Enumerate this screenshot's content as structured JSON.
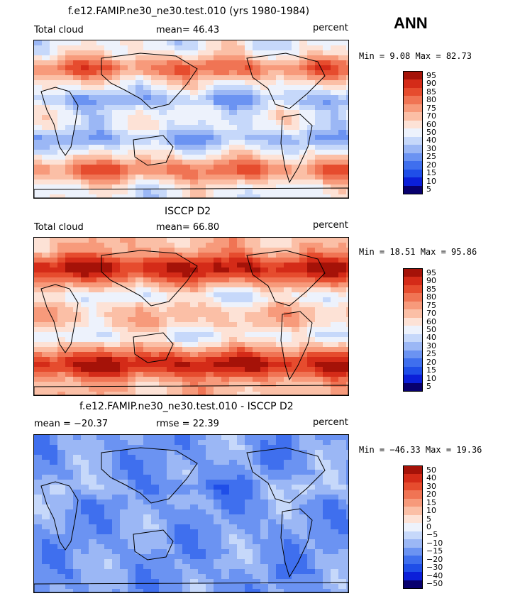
{
  "season": "ANN",
  "palette_warm_cool": [
    "#08006e",
    "#0b1fd9",
    "#1f4ee8",
    "#3f6fee",
    "#6b93f2",
    "#9bb7f5",
    "#c6d8fa",
    "#edf2fc",
    "#fde2d6",
    "#fbbfa6",
    "#f79a7b",
    "#f07454",
    "#e64c2e",
    "#d42b18",
    "#a51208"
  ],
  "panels": [
    {
      "title": "f.e12.FAMIP.ne30_ne30.test.010 (yrs 1980-1984)",
      "left_label": "Total cloud",
      "center_label": "mean=  46.43",
      "right_label": "percent",
      "minmax": "Min =    9.08  Max =   82.73",
      "colorbar_labels": [
        "95",
        "90",
        "85",
        "80",
        "75",
        "70",
        "60",
        "50",
        "40",
        "30",
        "25",
        "20",
        "15",
        "10",
        "5"
      ],
      "field_type": "model"
    },
    {
      "title": "ISCCP D2",
      "left_label": "Total cloud",
      "center_label": "mean=  66.80",
      "right_label": "percent",
      "minmax": "Min =  18.51  Max =   95.86",
      "colorbar_labels": [
        "95",
        "90",
        "85",
        "80",
        "75",
        "70",
        "60",
        "50",
        "40",
        "30",
        "25",
        "20",
        "15",
        "10",
        "5"
      ],
      "field_type": "obs"
    },
    {
      "title": "f.e12.FAMIP.ne30_ne30.test.010 - ISCCP D2",
      "left_label": "mean = −20.37",
      "center_label": "rmse =  22.39",
      "right_label": "percent",
      "minmax": "Min = −46.33  Max =   19.36",
      "colorbar_labels": [
        "50",
        "40",
        "30",
        "20",
        "15",
        "10",
        "5",
        "0",
        "−5",
        "−10",
        "−15",
        "−20",
        "−30",
        "−40",
        "−50"
      ],
      "field_type": "diff"
    }
  ]
}
